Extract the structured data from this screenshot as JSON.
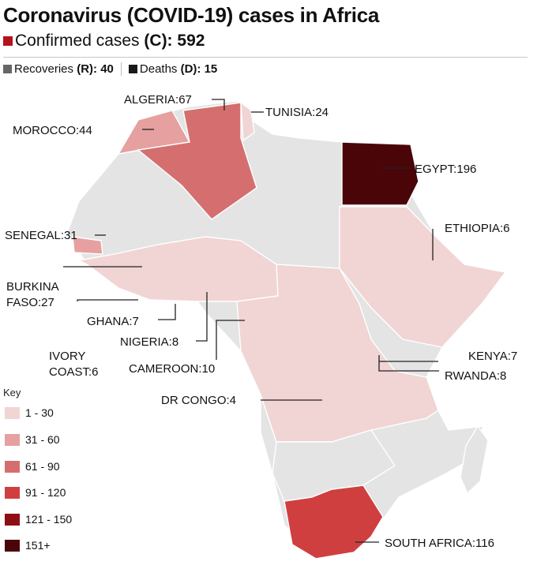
{
  "title": "Coronavirus (COVID-19) cases in Africa",
  "confirmed": {
    "label": "Confirmed cases",
    "code": "(C):",
    "value": "592",
    "color": "#b3121e"
  },
  "recoveries": {
    "label": "Recoveries",
    "code": "(R):",
    "value": "40",
    "color": "#666666"
  },
  "deaths": {
    "label": "Deaths",
    "code": "(D):",
    "value": "15",
    "color": "#1a1a1a"
  },
  "countries": [
    {
      "label": "ALGERIA:67",
      "country": "Algeria",
      "cases": 67
    },
    {
      "label": "TUNISIA:24",
      "country": "Tunisia",
      "cases": 24
    },
    {
      "label": "MOROCCO:44",
      "country": "Morocco",
      "cases": 44
    },
    {
      "label": "EGYPT:196",
      "country": "Egypt",
      "cases": 196
    },
    {
      "label": "SENEGAL:31",
      "country": "Senegal",
      "cases": 31
    },
    {
      "label": "ETHIOPIA:6",
      "country": "Ethiopia",
      "cases": 6
    },
    {
      "label": "BURKINA",
      "label2": "FASO:27",
      "country": "Burkina Faso",
      "cases": 27
    },
    {
      "label": "GHANA:7",
      "country": "Ghana",
      "cases": 7
    },
    {
      "label": "NIGERIA:8",
      "country": "Nigeria",
      "cases": 8
    },
    {
      "label": "IVORY",
      "label2": "COAST:6",
      "country": "Ivory Coast",
      "cases": 6
    },
    {
      "label": "CAMEROON:10",
      "country": "Cameroon",
      "cases": 10
    },
    {
      "label": "KENYA:7",
      "country": "Kenya",
      "cases": 7
    },
    {
      "label": "RWANDA:8",
      "country": "Rwanda",
      "cases": 8
    },
    {
      "label": "DR CONGO:4",
      "country": "DR Congo",
      "cases": 4
    },
    {
      "label": "SOUTH AFRICA:116",
      "country": "South Africa",
      "cases": 116
    }
  ],
  "key": {
    "title": "Key",
    "items": [
      {
        "label": "1 - 30",
        "color": "#f1d4d4"
      },
      {
        "label": "31 - 60",
        "color": "#e6a0a0"
      },
      {
        "label": "61 - 90",
        "color": "#d56f6f"
      },
      {
        "label": "91 - 120",
        "color": "#d03f3f"
      },
      {
        "label": "121 - 150",
        "color": "#8e0e14"
      },
      {
        "label": "151+",
        "color": "#4a0508"
      }
    ]
  },
  "colors": {
    "no_cases": "#e4e4e4"
  }
}
